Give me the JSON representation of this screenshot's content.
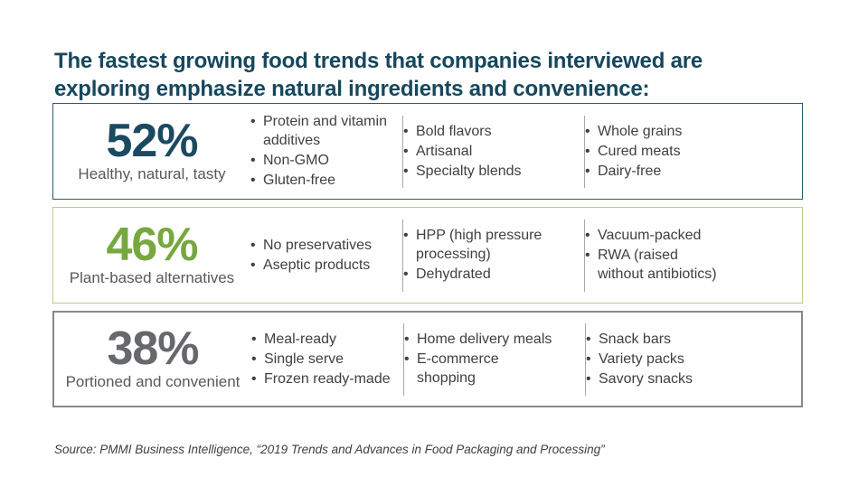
{
  "title_lines": [
    "The fastest growing food trends that companies interviewed are",
    "exploring emphasize natural ingredients and convenience:"
  ],
  "colors": {
    "title": "#17475c",
    "body_text": "#414042",
    "label_gray": "#58595b",
    "divider": "#a7a9ac",
    "background": "#fefefe"
  },
  "rows": [
    {
      "percent": "52%",
      "label": "Healthy, natural, tasty",
      "percent_color": "#1b4a60",
      "border_color": "#2c5c71",
      "border_thick": false,
      "columns": [
        [
          "Protein and vitamin\nadditives",
          "Non-GMO",
          "Gluten-free"
        ],
        [
          "Bold flavors",
          "Artisanal",
          "Specialty blends"
        ],
        [
          "Whole grains",
          "Cured meats",
          "Dairy-free"
        ]
      ]
    },
    {
      "percent": "46%",
      "label": "Plant-based alternatives",
      "percent_color": "#77a840",
      "border_color": "#b7cd90",
      "border_thick": false,
      "columns": [
        [
          "No preservatives",
          "Aseptic products"
        ],
        [
          "HPP (high pressure\nprocessing)",
          "Dehydrated"
        ],
        [
          "Vacuum-packed",
          "RWA (raised\nwithout antibiotics)"
        ]
      ]
    },
    {
      "percent": "38%",
      "label": "Portioned and convenient",
      "percent_color": "#66686b",
      "border_color": "#87898b",
      "border_thick": true,
      "columns": [
        [
          "Meal-ready",
          "Single serve",
          "Frozen ready-made"
        ],
        [
          "Home delivery meals",
          "E-commerce\nshopping"
        ],
        [
          "Snack bars",
          "Variety packs",
          "Savory snacks"
        ]
      ]
    }
  ],
  "source": "Source: PMMI Business Intelligence, “2019 Trends and Advances in Food Packaging and Processing”"
}
